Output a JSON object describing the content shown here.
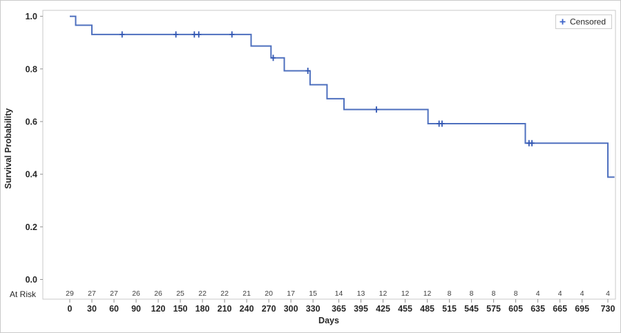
{
  "chart_data": {
    "type": "line",
    "subtype": "kaplan_meier_step",
    "title": "",
    "xlabel": "Days",
    "ylabel": "Survival Probability",
    "x_ticks": [
      0,
      30,
      60,
      90,
      120,
      150,
      180,
      210,
      240,
      270,
      300,
      330,
      365,
      395,
      425,
      455,
      485,
      515,
      545,
      575,
      605,
      635,
      665,
      695,
      730
    ],
    "y_ticks": [
      0.0,
      0.2,
      0.4,
      0.6,
      0.8,
      1.0
    ],
    "xlim_days": [
      -37,
      740
    ],
    "ylim": [
      0.0,
      1.0
    ],
    "grid": false,
    "legend_position": "inside-top-right",
    "series": [
      {
        "name": "Survival Probability",
        "color": "#4d6fbe",
        "start": [
          0,
          1.0
        ],
        "steps": [
          [
            8,
            0.966
          ],
          [
            30,
            0.931
          ],
          [
            246,
            0.887
          ],
          [
            273,
            0.842
          ],
          [
            291,
            0.793
          ],
          [
            326,
            0.74
          ],
          [
            349,
            0.687
          ],
          [
            372,
            0.646
          ],
          [
            486,
            0.592
          ],
          [
            618,
            0.518
          ],
          [
            730,
            0.389
          ]
        ],
        "end_day": 739
      }
    ],
    "censored_points": [
      [
        71,
        0.931
      ],
      [
        144,
        0.931
      ],
      [
        169,
        0.931
      ],
      [
        175,
        0.931
      ],
      [
        220,
        0.931
      ],
      [
        276,
        0.842
      ],
      [
        323,
        0.793
      ],
      [
        416,
        0.646
      ],
      [
        501,
        0.592
      ],
      [
        505,
        0.592
      ],
      [
        623,
        0.518
      ],
      [
        627,
        0.518
      ]
    ],
    "censor_color": "#3156b2",
    "legend": {
      "marker": "+",
      "label": "Censored"
    },
    "at_risk": {
      "label": "At Risk",
      "values": [
        29,
        27,
        27,
        26,
        26,
        25,
        22,
        22,
        21,
        20,
        17,
        15,
        14,
        13,
        12,
        12,
        12,
        8,
        8,
        8,
        8,
        4,
        4,
        4,
        4
      ]
    },
    "axis_color": "#c9c9c9",
    "tick_color": "#8f8f8f",
    "text_color": "#262626"
  }
}
